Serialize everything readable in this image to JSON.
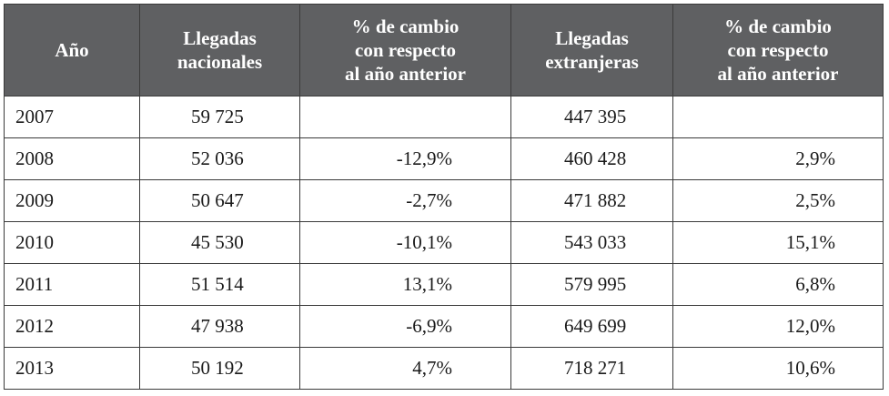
{
  "table": {
    "headers": {
      "year": "Año",
      "national": "Llegadas\nnacionales",
      "national_change": "% de cambio\ncon respecto\nal año anterior",
      "foreign": "Llegadas\nextranjeras",
      "foreign_change": "% de cambio\ncon respecto\nal año anterior"
    },
    "rows": [
      {
        "year": "2007",
        "national": "59 725",
        "national_change": "",
        "foreign": "447 395",
        "foreign_change": ""
      },
      {
        "year": "2008",
        "national": "52 036",
        "national_change": "-12,9%",
        "foreign": "460 428",
        "foreign_change": "2,9%"
      },
      {
        "year": "2009",
        "national": "50 647",
        "national_change": "-2,7%",
        "foreign": "471 882",
        "foreign_change": "2,5%"
      },
      {
        "year": "2010",
        "national": "45 530",
        "national_change": "-10,1%",
        "foreign": "543 033",
        "foreign_change": "15,1%"
      },
      {
        "year": "2011",
        "national": "51 514",
        "national_change": "13,1%",
        "foreign": "579 995",
        "foreign_change": "6,8%"
      },
      {
        "year": "2012",
        "national": "47 938",
        "national_change": "-6,9%",
        "foreign": "649 699",
        "foreign_change": "12,0%"
      },
      {
        "year": "2013",
        "national": "50 192",
        "national_change": "4,7%",
        "foreign": "718 271",
        "foreign_change": "10,6%"
      }
    ]
  }
}
